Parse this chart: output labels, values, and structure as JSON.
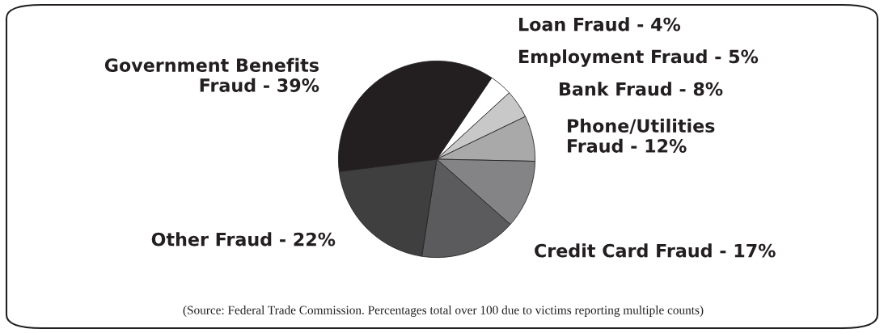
{
  "chart_data": {
    "type": "pie",
    "categories": [
      "Loan Fraud",
      "Employment Fraud",
      "Bank Fraud",
      "Phone/Utilities Fraud",
      "Credit Card Fraud",
      "Other Fraud",
      "Government Benefits Fraud"
    ],
    "values": [
      4,
      5,
      8,
      12,
      17,
      22,
      39
    ],
    "value_labels": [
      "4%",
      "5%",
      "8%",
      "12%",
      "17%",
      "22%",
      "39%"
    ],
    "colors": [
      "#ffffff",
      "#c8c8c9",
      "#a9a9aa",
      "#848486",
      "#5b5b5d",
      "#3f3f40",
      "#231f20"
    ],
    "annotations": [
      "(Source: Federal Trade Commission. Percentages total over 100 due to victims reporting multiple counts)"
    ]
  }
}
